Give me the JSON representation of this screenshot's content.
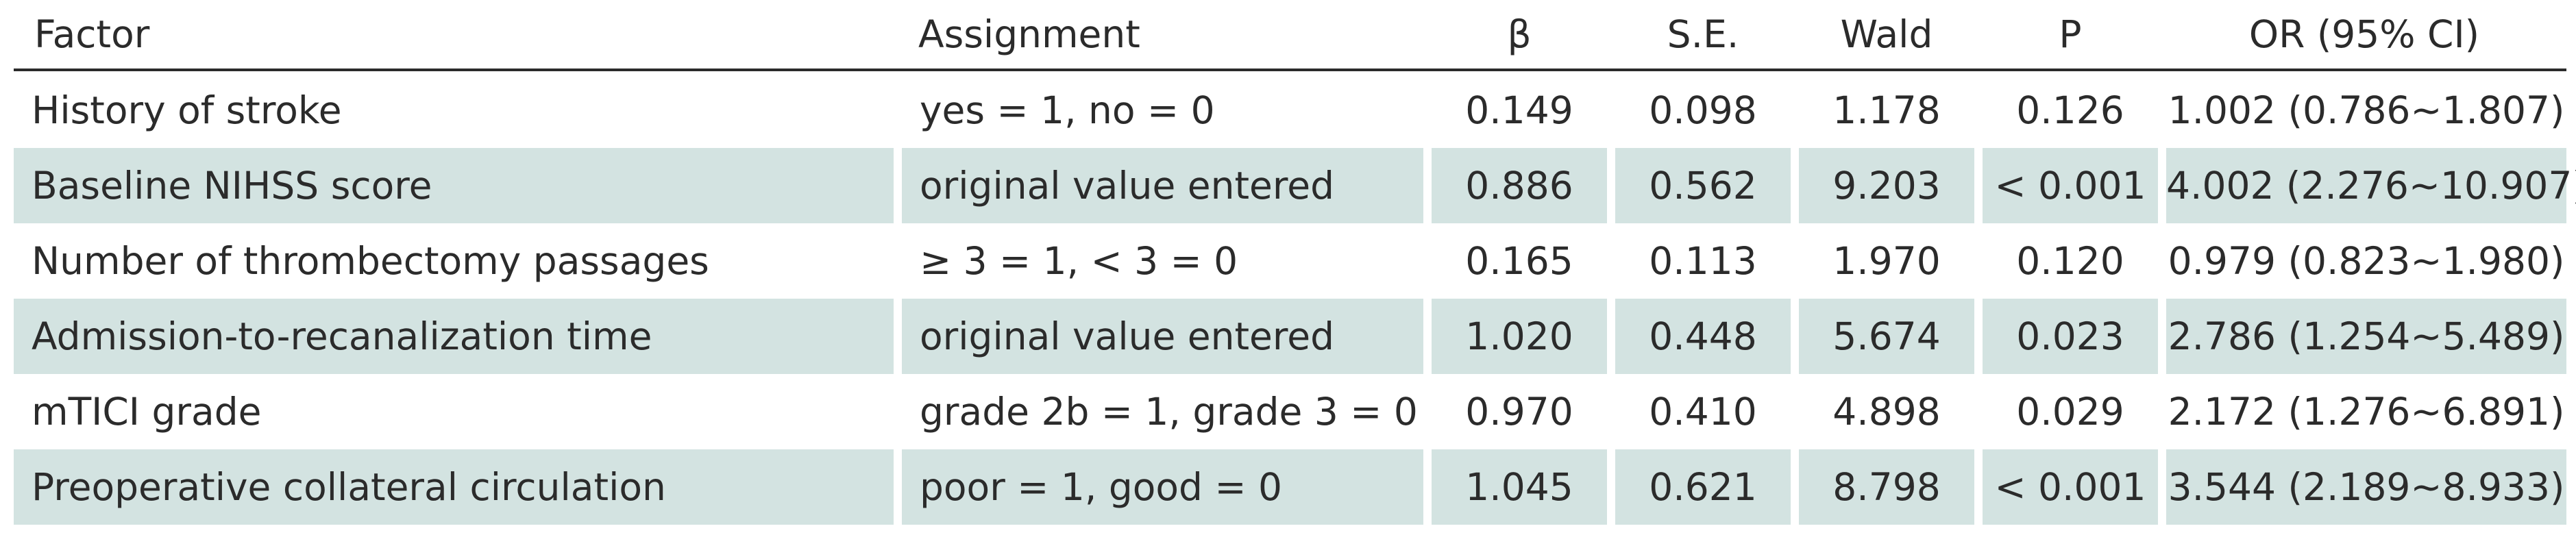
{
  "table": {
    "headers": [
      "Factor",
      "Assignment",
      "β",
      "S.E.",
      "Wald",
      "P",
      "OR (95% CI)"
    ],
    "rows": [
      [
        "History of stroke",
        "yes = 1, no = 0",
        "0.149",
        "0.098",
        "1.178",
        "0.126",
        "1.002 (0.786~1.807)"
      ],
      [
        "Baseline NIHSS score",
        "original value entered",
        "0.886",
        "0.562",
        "9.203",
        "< 0.001",
        "4.002 (2.276~10.907)"
      ],
      [
        "Number of thrombectomy passages",
        "≥ 3 = 1, < 3 = 0",
        "0.165",
        "0.113",
        "1.970",
        "0.120",
        "0.979 (0.823~1.980)"
      ],
      [
        "Admission-to-recanalization time",
        "original value entered",
        "1.020",
        "0.448",
        "5.674",
        "0.023",
        "2.786 (1.254~5.489)"
      ],
      [
        "mTICI grade",
        "grade 2b = 1, grade 3 = 0",
        "0.970",
        "0.410",
        "4.898",
        "0.029",
        "2.172 (1.276~6.891)"
      ],
      [
        "Preoperative collateral circulation",
        "poor = 1, good = 0",
        "1.045",
        "0.621",
        "8.798",
        "< 0.001",
        "3.544 (2.189~8.933)"
      ]
    ],
    "row_shading_color": "#d3e3e1"
  }
}
